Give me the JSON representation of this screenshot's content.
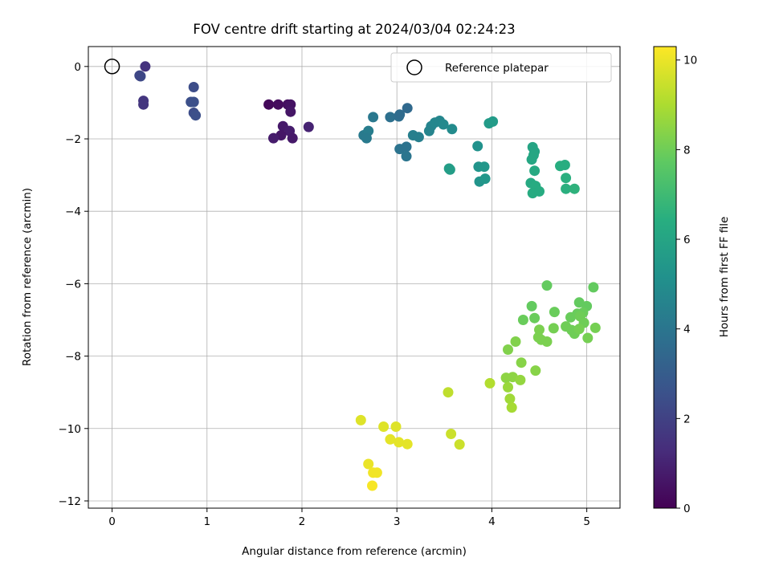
{
  "chart_data": {
    "type": "scatter",
    "title": "FOV centre drift starting at 2024/03/04 02:24:23",
    "xlabel": "Angular distance from reference (arcmin)",
    "ylabel": "Rotation from reference (arcmin)",
    "xlim": [
      -0.25,
      5.35
    ],
    "ylim": [
      -12.2,
      0.55
    ],
    "xticks": [
      "0",
      "1",
      "2",
      "3",
      "4",
      "5"
    ],
    "yticks": [
      "0",
      "−2",
      "−4",
      "−6",
      "−8",
      "−10",
      "−12"
    ],
    "grid": true,
    "legend": {
      "placement": "top-right",
      "entries": [
        "Reference platepar"
      ]
    },
    "reference_point": {
      "x": 0,
      "y": 0
    },
    "colorbar": {
      "label": "Hours from first FF file",
      "colormap": "viridis",
      "range": [
        0,
        10.3
      ],
      "ticks": [
        "0",
        "2",
        "4",
        "6",
        "8",
        "10"
      ]
    },
    "points": [
      {
        "x": 0.35,
        "y": 0.0,
        "c": 1.5
      },
      {
        "x": 0.3,
        "y": -0.27,
        "c": 2.3
      },
      {
        "x": 0.29,
        "y": -0.25,
        "c": 2.2
      },
      {
        "x": 0.33,
        "y": -0.95,
        "c": 1.6
      },
      {
        "x": 0.33,
        "y": -1.05,
        "c": 1.6
      },
      {
        "x": 0.86,
        "y": -0.57,
        "c": 2.4
      },
      {
        "x": 0.83,
        "y": -0.98,
        "c": 2.5
      },
      {
        "x": 0.86,
        "y": -0.98,
        "c": 2.5
      },
      {
        "x": 0.86,
        "y": -1.28,
        "c": 2.4
      },
      {
        "x": 0.88,
        "y": -1.35,
        "c": 2.5
      },
      {
        "x": 1.65,
        "y": -1.05,
        "c": 0.2
      },
      {
        "x": 1.75,
        "y": -1.05,
        "c": 0.3
      },
      {
        "x": 1.85,
        "y": -1.05,
        "c": 0.4
      },
      {
        "x": 1.88,
        "y": -1.05,
        "c": 0.5
      },
      {
        "x": 1.88,
        "y": -1.25,
        "c": 0.6
      },
      {
        "x": 1.8,
        "y": -1.65,
        "c": 0.7
      },
      {
        "x": 1.87,
        "y": -1.78,
        "c": 0.8
      },
      {
        "x": 1.78,
        "y": -1.9,
        "c": 0.6
      },
      {
        "x": 1.7,
        "y": -1.98,
        "c": 0.8
      },
      {
        "x": 1.9,
        "y": -1.98,
        "c": 0.7
      },
      {
        "x": 2.07,
        "y": -1.67,
        "c": 1.0
      },
      {
        "x": 2.65,
        "y": -1.9,
        "c": 4.2
      },
      {
        "x": 2.7,
        "y": -1.78,
        "c": 4.3
      },
      {
        "x": 2.68,
        "y": -1.98,
        "c": 4.2
      },
      {
        "x": 2.75,
        "y": -1.4,
        "c": 4.1
      },
      {
        "x": 2.93,
        "y": -1.4,
        "c": 3.8
      },
      {
        "x": 3.02,
        "y": -1.38,
        "c": 3.7
      },
      {
        "x": 3.03,
        "y": -1.33,
        "c": 3.6
      },
      {
        "x": 3.11,
        "y": -1.15,
        "c": 3.5
      },
      {
        "x": 3.03,
        "y": -2.28,
        "c": 3.9
      },
      {
        "x": 3.1,
        "y": -2.22,
        "c": 3.9
      },
      {
        "x": 3.1,
        "y": -2.48,
        "c": 4.0
      },
      {
        "x": 3.17,
        "y": -1.9,
        "c": 4.4
      },
      {
        "x": 3.23,
        "y": -1.95,
        "c": 4.4
      },
      {
        "x": 3.34,
        "y": -1.78,
        "c": 4.6
      },
      {
        "x": 3.36,
        "y": -1.65,
        "c": 4.6
      },
      {
        "x": 3.4,
        "y": -1.55,
        "c": 4.7
      },
      {
        "x": 3.45,
        "y": -1.5,
        "c": 4.7
      },
      {
        "x": 3.49,
        "y": -1.6,
        "c": 4.8
      },
      {
        "x": 3.58,
        "y": -1.73,
        "c": 4.9
      },
      {
        "x": 3.55,
        "y": -2.82,
        "c": 5.7
      },
      {
        "x": 3.56,
        "y": -2.85,
        "c": 5.7
      },
      {
        "x": 3.85,
        "y": -2.2,
        "c": 5.2
      },
      {
        "x": 3.86,
        "y": -2.77,
        "c": 5.3
      },
      {
        "x": 3.92,
        "y": -2.77,
        "c": 5.4
      },
      {
        "x": 3.87,
        "y": -3.18,
        "c": 5.3
      },
      {
        "x": 3.93,
        "y": -3.1,
        "c": 5.4
      },
      {
        "x": 3.97,
        "y": -1.57,
        "c": 5.6
      },
      {
        "x": 4.01,
        "y": -1.52,
        "c": 5.6
      },
      {
        "x": 4.43,
        "y": -2.23,
        "c": 6.0
      },
      {
        "x": 4.45,
        "y": -2.35,
        "c": 6.0
      },
      {
        "x": 4.44,
        "y": -2.45,
        "c": 6.1
      },
      {
        "x": 4.42,
        "y": -2.57,
        "c": 6.1
      },
      {
        "x": 4.45,
        "y": -2.88,
        "c": 6.2
      },
      {
        "x": 4.41,
        "y": -3.22,
        "c": 6.2
      },
      {
        "x": 4.46,
        "y": -3.3,
        "c": 6.3
      },
      {
        "x": 4.43,
        "y": -3.5,
        "c": 6.3
      },
      {
        "x": 4.5,
        "y": -3.45,
        "c": 6.3
      },
      {
        "x": 4.72,
        "y": -2.75,
        "c": 6.4
      },
      {
        "x": 4.77,
        "y": -2.72,
        "c": 6.4
      },
      {
        "x": 4.78,
        "y": -3.08,
        "c": 6.5
      },
      {
        "x": 4.78,
        "y": -3.38,
        "c": 6.5
      },
      {
        "x": 4.87,
        "y": -3.38,
        "c": 6.6
      },
      {
        "x": 4.58,
        "y": -6.05,
        "c": 7.8
      },
      {
        "x": 5.07,
        "y": -6.1,
        "c": 7.8
      },
      {
        "x": 4.42,
        "y": -6.62,
        "c": 7.8
      },
      {
        "x": 4.66,
        "y": -6.78,
        "c": 7.9
      },
      {
        "x": 4.45,
        "y": -6.95,
        "c": 7.9
      },
      {
        "x": 4.33,
        "y": -7.0,
        "c": 7.9
      },
      {
        "x": 4.92,
        "y": -6.52,
        "c": 7.8
      },
      {
        "x": 5.0,
        "y": -6.62,
        "c": 7.8
      },
      {
        "x": 4.96,
        "y": -6.8,
        "c": 7.9
      },
      {
        "x": 4.83,
        "y": -6.93,
        "c": 7.9
      },
      {
        "x": 4.9,
        "y": -6.83,
        "c": 7.9
      },
      {
        "x": 4.93,
        "y": -6.9,
        "c": 8.0
      },
      {
        "x": 4.97,
        "y": -7.08,
        "c": 8.0
      },
      {
        "x": 4.78,
        "y": -7.18,
        "c": 8.0
      },
      {
        "x": 4.84,
        "y": -7.28,
        "c": 8.0
      },
      {
        "x": 4.87,
        "y": -7.38,
        "c": 8.0
      },
      {
        "x": 4.92,
        "y": -7.25,
        "c": 8.1
      },
      {
        "x": 5.01,
        "y": -7.5,
        "c": 8.1
      },
      {
        "x": 5.09,
        "y": -7.22,
        "c": 8.1
      },
      {
        "x": 4.65,
        "y": -7.23,
        "c": 8.1
      },
      {
        "x": 4.5,
        "y": -7.27,
        "c": 8.2
      },
      {
        "x": 4.49,
        "y": -7.48,
        "c": 8.2
      },
      {
        "x": 4.52,
        "y": -7.55,
        "c": 8.2
      },
      {
        "x": 4.58,
        "y": -7.6,
        "c": 8.2
      },
      {
        "x": 4.25,
        "y": -7.6,
        "c": 8.3
      },
      {
        "x": 4.17,
        "y": -7.82,
        "c": 8.3
      },
      {
        "x": 4.31,
        "y": -8.18,
        "c": 8.4
      },
      {
        "x": 4.46,
        "y": -8.4,
        "c": 8.4
      },
      {
        "x": 4.15,
        "y": -8.6,
        "c": 8.5
      },
      {
        "x": 4.22,
        "y": -8.58,
        "c": 8.5
      },
      {
        "x": 4.3,
        "y": -8.66,
        "c": 8.6
      },
      {
        "x": 4.17,
        "y": -8.86,
        "c": 8.7
      },
      {
        "x": 4.19,
        "y": -9.18,
        "c": 8.8
      },
      {
        "x": 4.21,
        "y": -9.42,
        "c": 8.9
      },
      {
        "x": 3.98,
        "y": -8.75,
        "c": 9.1
      },
      {
        "x": 3.54,
        "y": -9.0,
        "c": 9.3
      },
      {
        "x": 3.57,
        "y": -10.15,
        "c": 9.5
      },
      {
        "x": 3.66,
        "y": -10.44,
        "c": 9.5
      },
      {
        "x": 2.62,
        "y": -9.77,
        "c": 9.8
      },
      {
        "x": 2.86,
        "y": -9.95,
        "c": 9.8
      },
      {
        "x": 2.99,
        "y": -9.95,
        "c": 9.8
      },
      {
        "x": 2.93,
        "y": -10.3,
        "c": 9.9
      },
      {
        "x": 3.02,
        "y": -10.38,
        "c": 9.9
      },
      {
        "x": 3.11,
        "y": -10.43,
        "c": 9.9
      },
      {
        "x": 2.7,
        "y": -10.98,
        "c": 10.0
      },
      {
        "x": 2.75,
        "y": -11.22,
        "c": 10.1
      },
      {
        "x": 2.79,
        "y": -11.22,
        "c": 10.1
      },
      {
        "x": 2.74,
        "y": -11.58,
        "c": 10.2
      }
    ]
  }
}
